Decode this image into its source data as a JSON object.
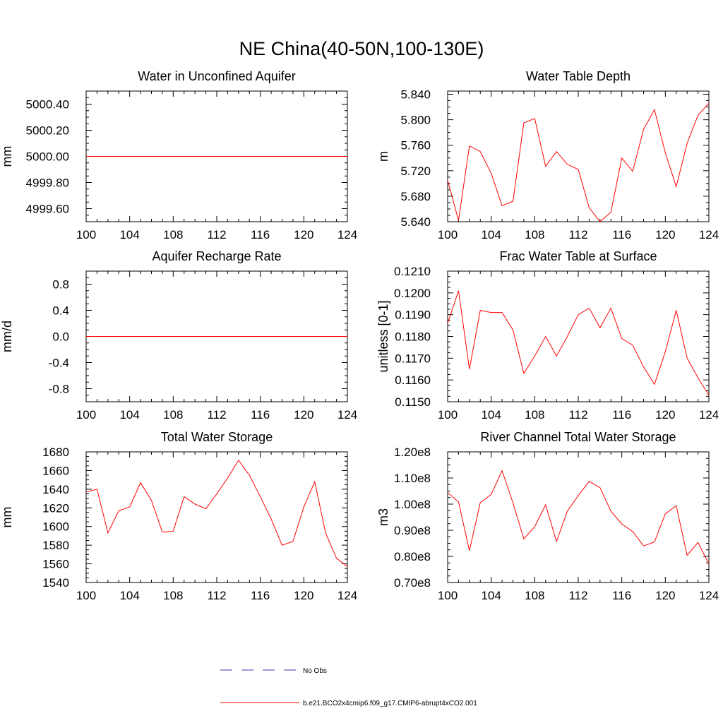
{
  "title": "NE China(40-50N,100-130E)",
  "colors": {
    "model": "#ff0000",
    "obs": "#3b3bb8",
    "axis": "#000000"
  },
  "legend": [
    {
      "label": "No Obs",
      "style": "dashed",
      "color": "#3b3bb8"
    },
    {
      "label": "b.e21.BCO2x4cmip6.f09_g17.CMIP6-abrupt4xCO2.001",
      "style": "solid",
      "color": "#ff0000"
    }
  ],
  "chart_data": [
    {
      "type": "line",
      "title": "Water in Unconfined Aquifer",
      "ylabel": "mm",
      "xlim": [
        100,
        124
      ],
      "ylim": [
        4999.5,
        5000.5
      ],
      "xticks": [
        "100",
        "104",
        "108",
        "112",
        "116",
        "120",
        "124"
      ],
      "yticks": [
        {
          "v": 4999.6,
          "label": "4999.60"
        },
        {
          "v": 4999.8,
          "label": "4999.80"
        },
        {
          "v": 5000.0,
          "label": "5000.00"
        },
        {
          "v": 5000.2,
          "label": "5000.20"
        },
        {
          "v": 5000.4,
          "label": "5000.40"
        }
      ],
      "x": [
        100,
        101,
        102,
        103,
        104,
        105,
        106,
        107,
        108,
        109,
        110,
        111,
        112,
        113,
        114,
        115,
        116,
        117,
        118,
        119,
        120,
        121,
        122,
        123,
        124
      ],
      "series": [
        {
          "values": [
            5000,
            5000,
            5000,
            5000,
            5000,
            5000,
            5000,
            5000,
            5000,
            5000,
            5000,
            5000,
            5000,
            5000,
            5000,
            5000,
            5000,
            5000,
            5000,
            5000,
            5000,
            5000,
            5000,
            5000,
            5000
          ]
        }
      ]
    },
    {
      "type": "line",
      "title": "Water Table Depth",
      "ylabel": "m",
      "xlim": [
        100,
        124
      ],
      "ylim": [
        5.64,
        5.845
      ],
      "xticks": [
        "100",
        "104",
        "108",
        "112",
        "116",
        "120",
        "124"
      ],
      "yticks": [
        {
          "v": 5.64,
          "label": "5.640"
        },
        {
          "v": 5.68,
          "label": "5.680"
        },
        {
          "v": 5.72,
          "label": "5.720"
        },
        {
          "v": 5.76,
          "label": "5.760"
        },
        {
          "v": 5.8,
          "label": "5.800"
        },
        {
          "v": 5.84,
          "label": "5.840"
        }
      ],
      "x": [
        100,
        101,
        102,
        103,
        104,
        105,
        106,
        107,
        108,
        109,
        110,
        111,
        112,
        113,
        114,
        115,
        116,
        117,
        118,
        119,
        120,
        121,
        122,
        123,
        124
      ],
      "series": [
        {
          "values": [
            5.705,
            5.642,
            5.759,
            5.75,
            5.716,
            5.665,
            5.672,
            5.795,
            5.802,
            5.727,
            5.75,
            5.73,
            5.722,
            5.662,
            5.64,
            5.655,
            5.74,
            5.719,
            5.785,
            5.816,
            5.748,
            5.695,
            5.763,
            5.807,
            5.826
          ]
        }
      ]
    },
    {
      "type": "line",
      "title": "Aquifer Recharge Rate",
      "ylabel": "mm/d",
      "xlim": [
        100,
        124
      ],
      "ylim": [
        -1.0,
        1.0
      ],
      "xticks": [
        "100",
        "104",
        "108",
        "112",
        "116",
        "120",
        "124"
      ],
      "yticks": [
        {
          "v": -0.8,
          "label": "-0.8"
        },
        {
          "v": -0.4,
          "label": "-0.4"
        },
        {
          "v": 0.0,
          "label": "0.0"
        },
        {
          "v": 0.4,
          "label": "0.4"
        },
        {
          "v": 0.8,
          "label": "0.8"
        }
      ],
      "x": [
        100,
        101,
        102,
        103,
        104,
        105,
        106,
        107,
        108,
        109,
        110,
        111,
        112,
        113,
        114,
        115,
        116,
        117,
        118,
        119,
        120,
        121,
        122,
        123,
        124
      ],
      "series": [
        {
          "values": [
            0,
            0,
            0,
            0,
            0,
            0,
            0,
            0,
            0,
            0,
            0,
            0,
            0,
            0,
            0,
            0,
            0,
            0,
            0,
            0,
            0,
            0,
            0,
            0,
            0
          ]
        }
      ]
    },
    {
      "type": "line",
      "title": "Frac Water Table at Surface",
      "ylabel": "unitless [0-1]",
      "xlim": [
        100,
        124
      ],
      "ylim": [
        0.115,
        0.121
      ],
      "xticks": [
        "100",
        "104",
        "108",
        "112",
        "116",
        "120",
        "124"
      ],
      "yticks": [
        {
          "v": 0.115,
          "label": "0.1150"
        },
        {
          "v": 0.116,
          "label": "0.1160"
        },
        {
          "v": 0.117,
          "label": "0.1170"
        },
        {
          "v": 0.118,
          "label": "0.1180"
        },
        {
          "v": 0.119,
          "label": "0.1190"
        },
        {
          "v": 0.12,
          "label": "0.1200"
        },
        {
          "v": 0.121,
          "label": "0.1210"
        }
      ],
      "x": [
        100,
        101,
        102,
        103,
        104,
        105,
        106,
        107,
        108,
        109,
        110,
        111,
        112,
        113,
        114,
        115,
        116,
        117,
        118,
        119,
        120,
        121,
        122,
        123,
        124
      ],
      "series": [
        {
          "values": [
            0.1186,
            0.1201,
            0.1165,
            0.1192,
            0.1191,
            0.1191,
            0.1183,
            0.1163,
            0.1171,
            0.118,
            0.1171,
            0.118,
            0.119,
            0.1193,
            0.1184,
            0.1193,
            0.1179,
            0.1176,
            0.1166,
            0.1158,
            0.1173,
            0.1192,
            0.117,
            0.1161,
            0.1153
          ]
        }
      ]
    },
    {
      "type": "line",
      "title": "Total Water Storage",
      "ylabel": "mm",
      "xlim": [
        100,
        124
      ],
      "ylim": [
        1540,
        1680
      ],
      "xticks": [
        "100",
        "104",
        "108",
        "112",
        "116",
        "120",
        "124"
      ],
      "yticks": [
        {
          "v": 1540,
          "label": "1540"
        },
        {
          "v": 1560,
          "label": "1560"
        },
        {
          "v": 1580,
          "label": "1580"
        },
        {
          "v": 1600,
          "label": "1600"
        },
        {
          "v": 1620,
          "label": "1620"
        },
        {
          "v": 1640,
          "label": "1640"
        },
        {
          "v": 1660,
          "label": "1660"
        },
        {
          "v": 1680,
          "label": "1680"
        }
      ],
      "x": [
        100,
        101,
        102,
        103,
        104,
        105,
        106,
        107,
        108,
        109,
        110,
        111,
        112,
        113,
        114,
        115,
        116,
        117,
        118,
        119,
        120,
        121,
        122,
        123,
        124
      ],
      "series": [
        {
          "values": [
            1637,
            1640,
            1593,
            1617,
            1621,
            1647,
            1628,
            1594,
            1595,
            1632,
            1624,
            1619,
            1635,
            1652,
            1671,
            1655,
            1632,
            1608,
            1580,
            1584,
            1621,
            1648,
            1593,
            1566,
            1557
          ]
        }
      ]
    },
    {
      "type": "line",
      "title": "River Channel Total Water Storage",
      "ylabel": "m3",
      "xlim": [
        100,
        124
      ],
      "ylim": [
        70000000,
        120000000
      ],
      "xticks": [
        "100",
        "104",
        "108",
        "112",
        "116",
        "120",
        "124"
      ],
      "yticks": [
        {
          "v": 70000000,
          "label": "0.70e8"
        },
        {
          "v": 80000000,
          "label": "0.80e8"
        },
        {
          "v": 90000000,
          "label": "0.90e8"
        },
        {
          "v": 100000000,
          "label": "1.00e8"
        },
        {
          "v": 110000000,
          "label": "1.10e8"
        },
        {
          "v": 120000000,
          "label": "1.20e8"
        }
      ],
      "x": [
        100,
        101,
        102,
        103,
        104,
        105,
        106,
        107,
        108,
        109,
        110,
        111,
        112,
        113,
        114,
        115,
        116,
        117,
        118,
        119,
        120,
        121,
        122,
        123,
        124
      ],
      "series": [
        {
          "values": [
            104500000,
            100800000,
            82200000,
            100600000,
            103700000,
            112800000,
            100500000,
            86700000,
            91400000,
            99700000,
            85700000,
            97300000,
            103300000,
            108700000,
            106300000,
            97300000,
            92400000,
            89500000,
            84000000,
            85500000,
            96300000,
            99400000,
            80400000,
            85300000,
            77100000
          ]
        }
      ]
    }
  ]
}
